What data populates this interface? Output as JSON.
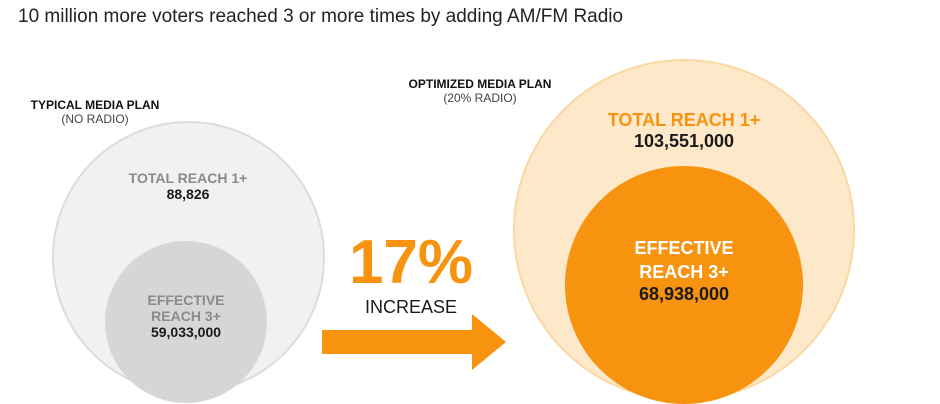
{
  "headline": "10 million more voters reached 3 or more times by adding AM/FM Radio",
  "typical_plan": {
    "title": "TYPICAL MEDIA PLAN",
    "subtitle": "(NO RADIO)",
    "total_reach_label": "TOTAL REACH 1+",
    "total_reach_value": "88,826",
    "effective_reach_label_line1": "EFFECTIVE",
    "effective_reach_label_line2": "REACH 3+",
    "effective_reach_value": "59,033,000"
  },
  "optimized_plan": {
    "title": "OPTIMIZED MEDIA PLAN",
    "subtitle": "(20% RADIO)",
    "total_reach_label": "TOTAL REACH 1+",
    "total_reach_value": "103,551,000",
    "effective_reach_label_line1": "EFFECTIVE",
    "effective_reach_label_line2": "REACH 3+",
    "effective_reach_value": "68,938,000"
  },
  "increase": {
    "percent": "17%",
    "label": "INCREASE"
  },
  "colors": {
    "accent_orange": "#f7930f",
    "light_orange": "#fde9c9",
    "light_grey": "#f1f1f1",
    "mid_grey": "#d6d6d6",
    "label_grey": "#8a8a8a"
  }
}
